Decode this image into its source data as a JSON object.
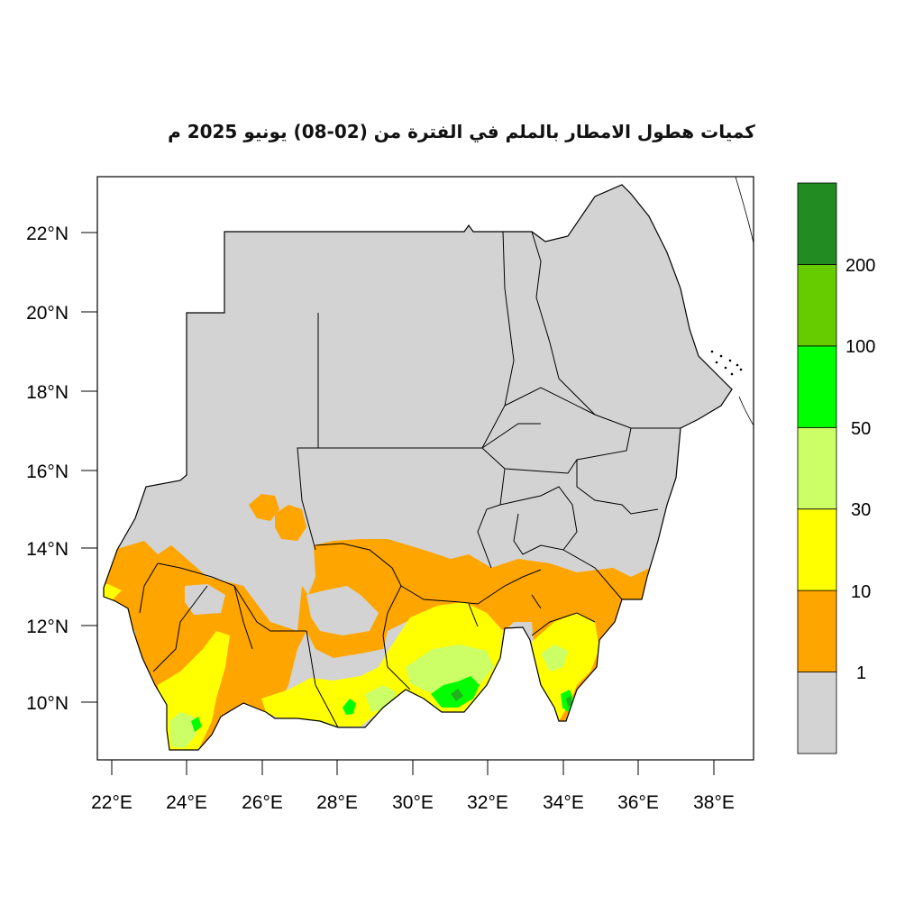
{
  "title": "كميات هطول الامطار بالملم في الفترة من (02-08) يونيو 2025 م",
  "x_axis": {
    "ticks": [
      "22°E",
      "24°E",
      "26°E",
      "28°E",
      "30°E",
      "32°E",
      "34°E",
      "36°E",
      "38°E"
    ]
  },
  "y_axis": {
    "ticks": [
      "10°N",
      "12°N",
      "14°N",
      "16°N",
      "18°N",
      "20°N",
      "22°N"
    ]
  },
  "legend": {
    "unit": "mm",
    "classes": [
      {
        "range": "<1",
        "color": "#d3d3d3"
      },
      {
        "range": "1-10",
        "color": "#ffa500"
      },
      {
        "range": "10-30",
        "color": "#ffff00"
      },
      {
        "range": "30-50",
        "color": "#ccff66"
      },
      {
        "range": "50-100",
        "color": "#00ff00"
      },
      {
        "range": "100-200",
        "color": "#66cc00"
      },
      {
        "range": ">200",
        "color": "#228b22"
      }
    ],
    "break_labels": [
      "1",
      "10",
      "30",
      "50",
      "100",
      "200"
    ]
  },
  "colors": {
    "border": "#000000",
    "background": "#ffffff"
  }
}
